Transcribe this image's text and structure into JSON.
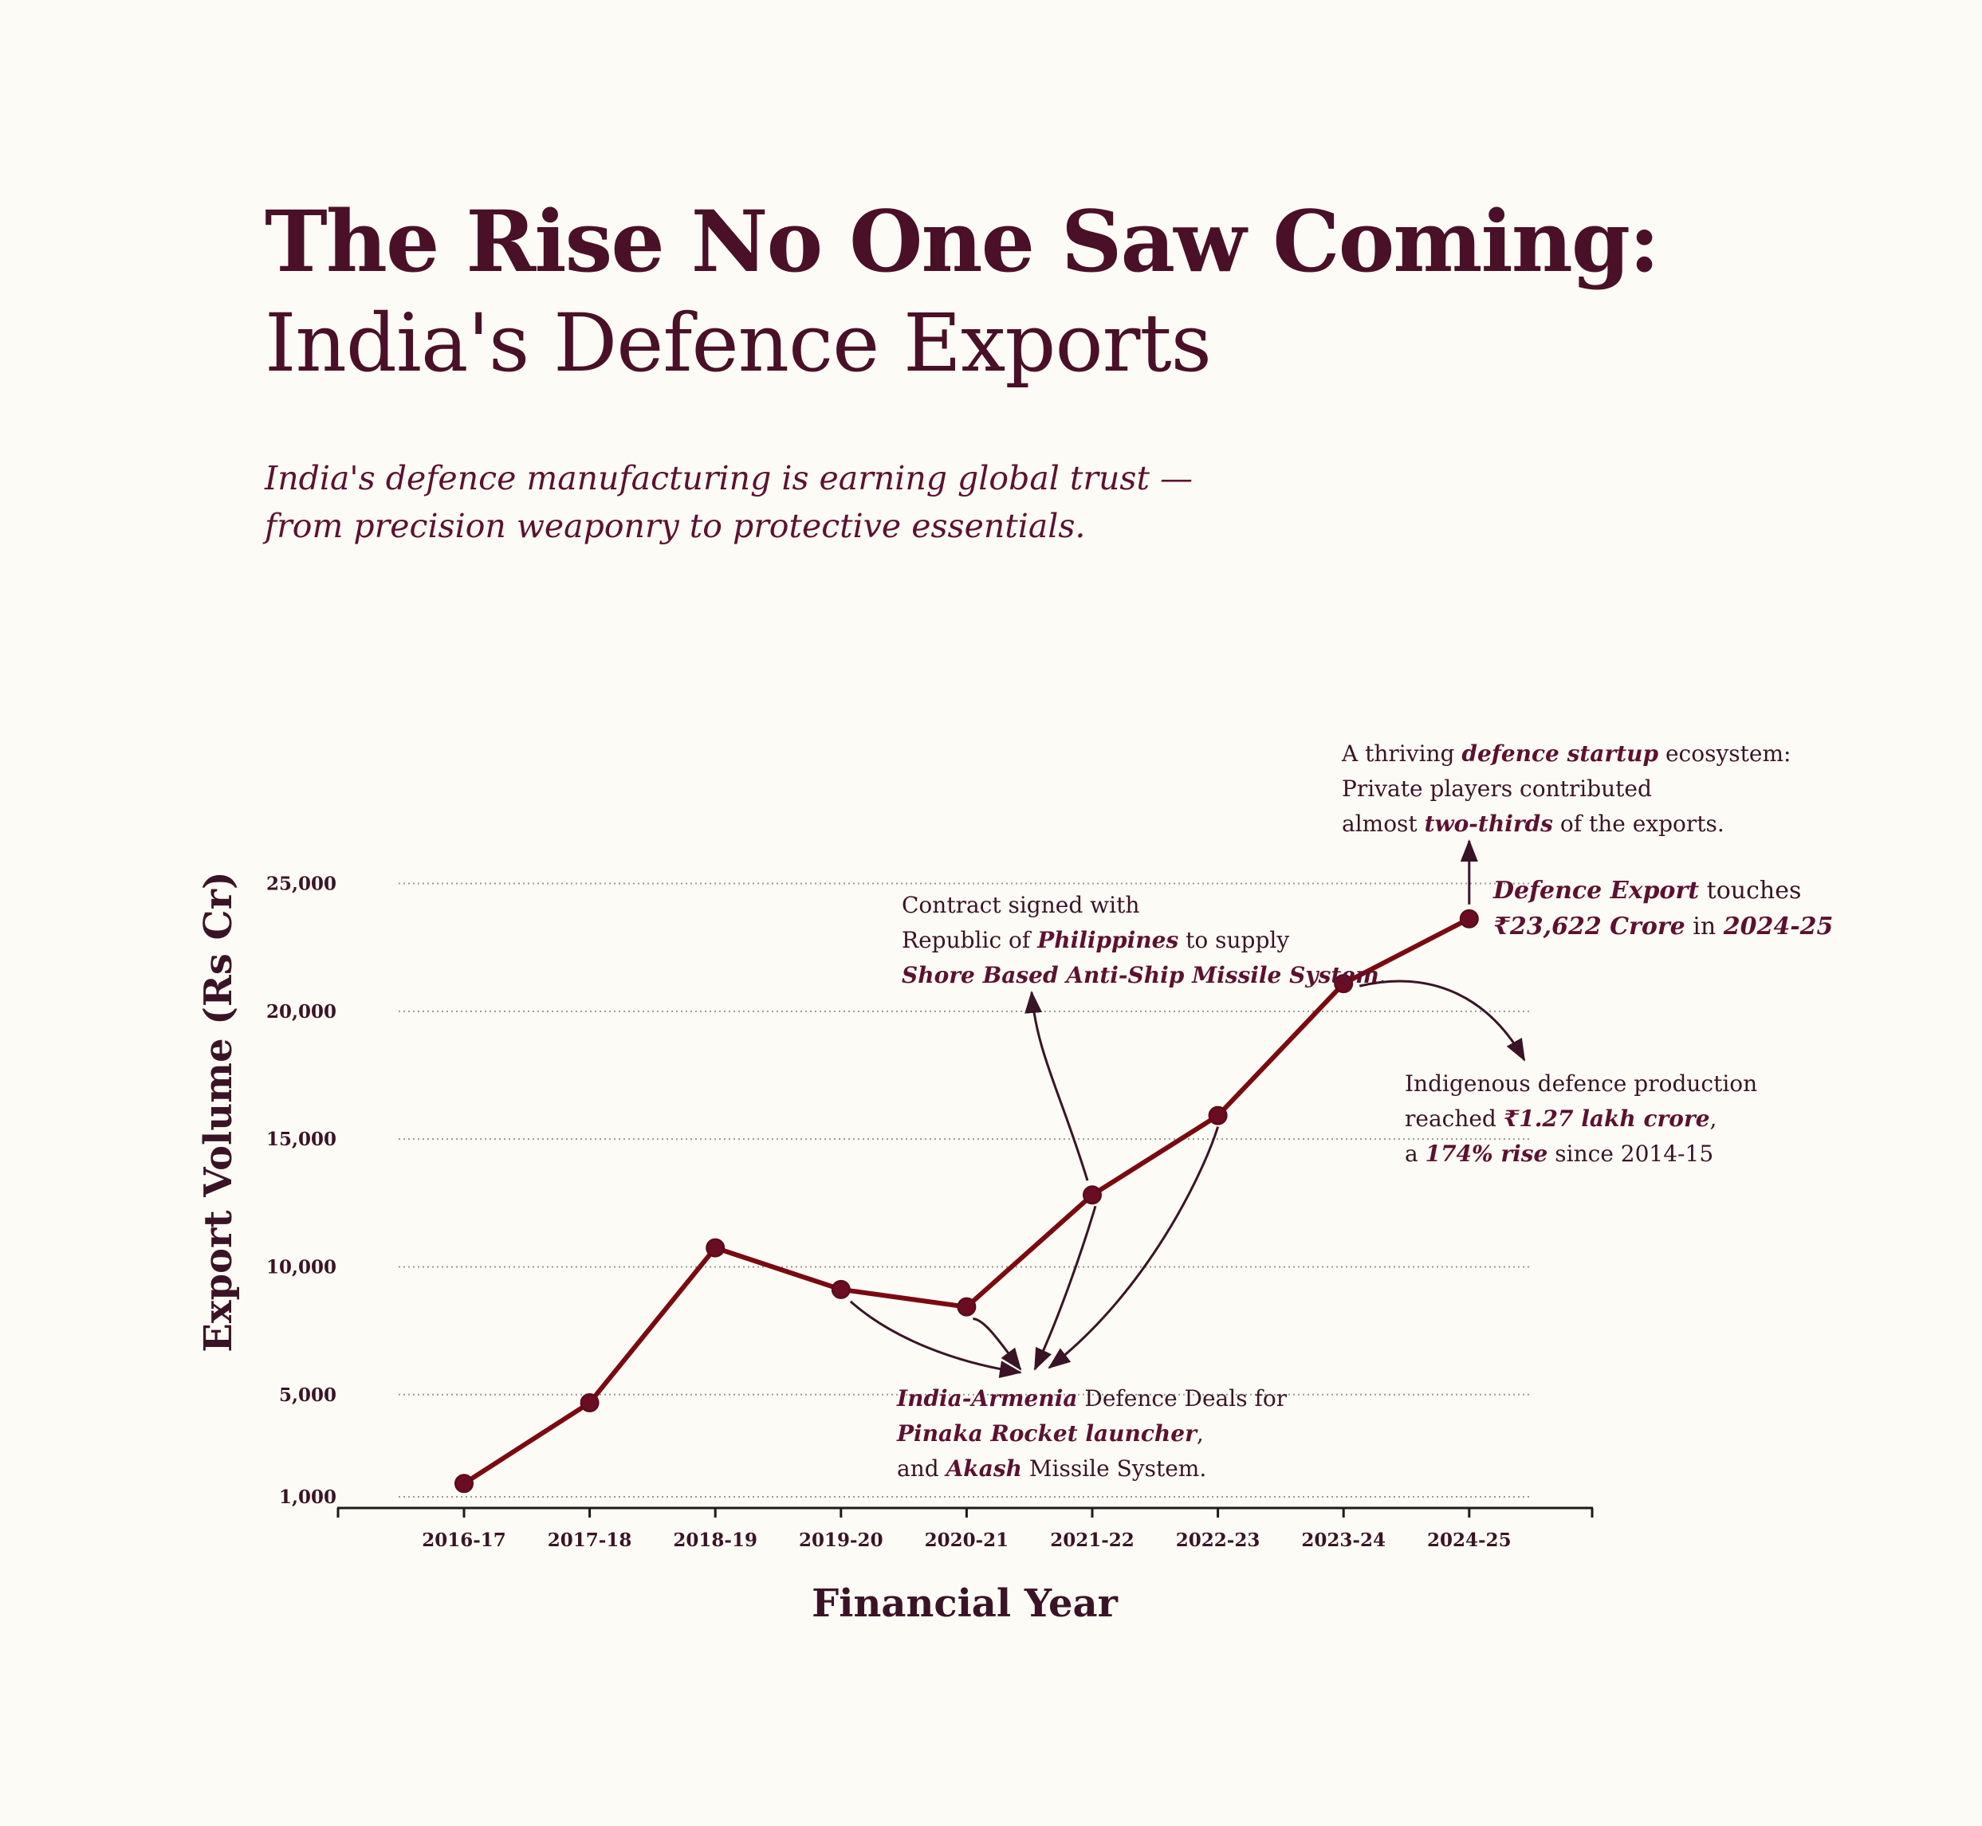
{
  "header": {
    "title_line1": "The Rise No One Saw Coming:",
    "title_line2": "India's Defence Exports",
    "subtitle_line1": "India's defence manufacturing is earning global trust —",
    "subtitle_line2": "from precision weaponry to protective essentials."
  },
  "colors": {
    "background": "#fdfbf5",
    "line": "#7a0a10",
    "marker": "#6a0c22",
    "text": "#4a1028",
    "grid": "#999999"
  },
  "chart_data": {
    "type": "line",
    "title": "",
    "xlabel": "Financial Year",
    "ylabel": "Export Volume (Rs Cr)",
    "categories": [
      "2016-17",
      "2017-18",
      "2018-19",
      "2019-20",
      "2020-21",
      "2021-22",
      "2022-23",
      "2023-24",
      "2024-25"
    ],
    "values": [
      1521,
      4682,
      10745,
      9115,
      8434,
      12814,
      15920,
      21083,
      23622
    ],
    "y_ticks": [
      1000,
      5000,
      10000,
      15000,
      20000,
      25000
    ],
    "y_tick_labels": [
      "1,000",
      "5,000",
      "10,000",
      "15,000",
      "20,000",
      "25,000"
    ],
    "grid": "horizontal dotted",
    "legend": "none",
    "annotations": [
      {
        "id": "armenia",
        "target_years": [
          "2019-20",
          "2020-21",
          "2021-22",
          "2022-23"
        ],
        "lines": [
          [
            {
              "t": "India-Armenia",
              "em": true
            },
            {
              "t": " Defence Deals for"
            }
          ],
          [
            {
              "t": "Pinaka Rocket launcher",
              "em": true
            },
            {
              "t": ","
            }
          ],
          [
            {
              "t": "and "
            },
            {
              "t": "Akash",
              "em": true
            },
            {
              "t": " Missile System."
            }
          ]
        ]
      },
      {
        "id": "philippines",
        "target_years": [
          "2021-22"
        ],
        "lines": [
          [
            {
              "t": "Contract signed with"
            }
          ],
          [
            {
              "t": "Republic of "
            },
            {
              "t": "Philippines",
              "em": true
            },
            {
              "t": " to supply"
            }
          ],
          [
            {
              "t": "Shore Based Anti-Ship Missile System",
              "em": true
            },
            {
              "t": "."
            }
          ]
        ]
      },
      {
        "id": "startup",
        "target_years": [
          "2024-25"
        ],
        "lines": [
          [
            {
              "t": "A thriving "
            },
            {
              "t": "defence startup",
              "em": true
            },
            {
              "t": " ecosystem:"
            }
          ],
          [
            {
              "t": "Private players contributed"
            }
          ],
          [
            {
              "t": "almost "
            },
            {
              "t": "two-thirds",
              "em": true
            },
            {
              "t": " of the exports."
            }
          ]
        ]
      },
      {
        "id": "touches",
        "target_years": [
          "2024-25"
        ],
        "lines": [
          [
            {
              "t": "Defence Export",
              "em": true
            },
            {
              "t": " touches"
            }
          ],
          [
            {
              "t": "₹23,622 Crore",
              "em": true
            },
            {
              "t": " in "
            },
            {
              "t": "2024-25",
              "em": true
            }
          ]
        ]
      },
      {
        "id": "indigenous",
        "target_years": [
          "2023-24"
        ],
        "lines": [
          [
            {
              "t": "Indigenous defence production"
            }
          ],
          [
            {
              "t": "reached "
            },
            {
              "t": "₹1.27 lakh crore",
              "em": true
            },
            {
              "t": ","
            }
          ],
          [
            {
              "t": "a "
            },
            {
              "t": "174% rise",
              "em": true
            },
            {
              "t": " since 2014-15"
            }
          ]
        ]
      }
    ]
  }
}
